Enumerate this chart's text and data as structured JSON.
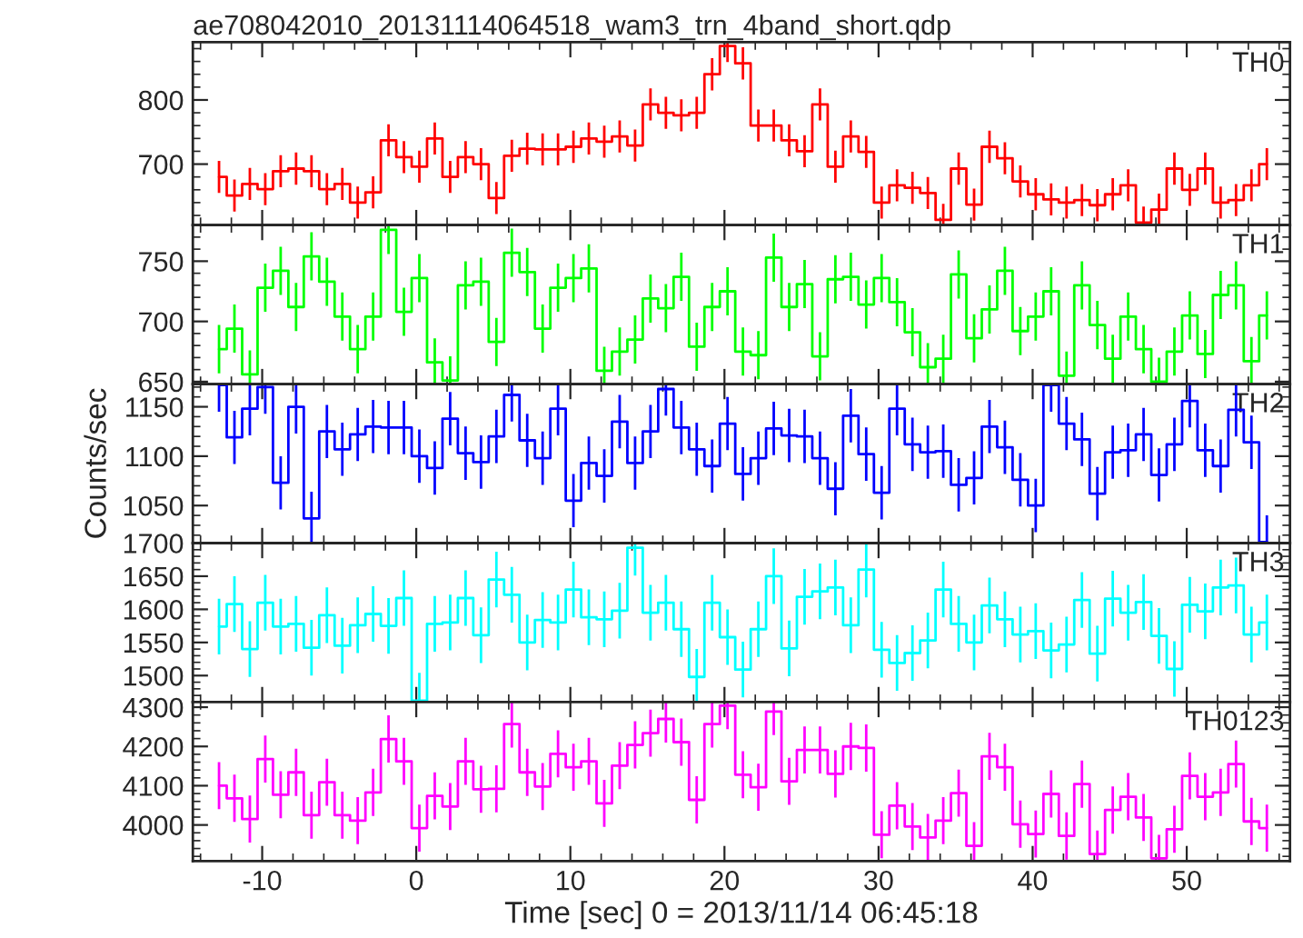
{
  "chart_data": [
    {
      "type": "step",
      "title": "ae708042010_20131114064518_wam3_trn_4band_short.qdp",
      "annotations": [
        "TH0"
      ],
      "color": "#ff0000",
      "tick_labels": "y",
      "x": [
        -12.8,
        -11.8,
        -10.8,
        -9.8,
        -8.8,
        -7.8,
        -6.8,
        -5.8,
        -4.8,
        -3.8,
        -2.8,
        -1.8,
        -0.8,
        0.2,
        1.2,
        2.2,
        3.2,
        4.2,
        5.2,
        6.2,
        7.2,
        8.2,
        9.2,
        10.2,
        11.2,
        12.2,
        13.2,
        14.2,
        15.2,
        16.2,
        17.2,
        18.2,
        19.2,
        20.2,
        21.2,
        22.2,
        23.2,
        24.2,
        25.2,
        26.2,
        27.2,
        28.2,
        29.2,
        30.2,
        31.2,
        32.2,
        33.2,
        34.2,
        35.2,
        36.2,
        37.2,
        38.2,
        39.2,
        40.2,
        41.2,
        42.2,
        43.2,
        44.2,
        45.2,
        46.2,
        47.2,
        48.2,
        49.2,
        50.2,
        51.2,
        52.2,
        53.2,
        54.2,
        55.2
      ],
      "values": [
        680,
        651,
        669,
        661,
        689,
        693,
        689,
        661,
        669,
        640,
        656,
        737,
        711,
        696,
        740,
        680,
        711,
        700,
        647,
        713,
        724,
        723,
        723,
        727,
        740,
        735,
        743,
        729,
        793,
        780,
        776,
        780,
        840,
        884,
        857,
        760,
        760,
        737,
        720,
        793,
        696,
        743,
        719,
        640,
        667,
        663,
        655,
        613,
        693,
        637,
        727,
        709,
        673,
        653,
        645,
        640,
        644,
        636,
        653,
        667,
        609,
        629,
        693,
        660,
        693,
        640,
        644,
        667,
        700
      ],
      "errors": [
        25,
        25,
        25,
        25,
        25,
        25,
        25,
        25,
        25,
        25,
        25,
        25,
        25,
        25,
        25,
        25,
        25,
        25,
        25,
        25,
        25,
        25,
        25,
        25,
        25,
        25,
        25,
        25,
        25,
        25,
        25,
        25,
        25,
        25,
        25,
        25,
        25,
        25,
        25,
        25,
        25,
        25,
        25,
        25,
        25,
        25,
        25,
        25,
        25,
        25,
        25,
        25,
        25,
        25,
        25,
        25,
        25,
        25,
        25,
        25,
        25,
        25,
        25,
        25,
        25,
        25,
        25,
        25,
        25
      ],
      "xlim": [
        -14.5,
        56.7
      ],
      "xticks": [
        -10,
        0,
        10,
        20,
        30,
        40,
        50
      ],
      "ylim": [
        605,
        890
      ],
      "yticks": [
        700,
        800
      ]
    },
    {
      "type": "step",
      "annotations": [
        "TH1"
      ],
      "color": "#00ff00",
      "tick_labels": "y",
      "x": [
        -12.8,
        -11.8,
        -10.8,
        -9.8,
        -8.8,
        -7.8,
        -6.8,
        -5.8,
        -4.8,
        -3.8,
        -2.8,
        -1.8,
        -0.8,
        0.2,
        1.2,
        2.2,
        3.2,
        4.2,
        5.2,
        6.2,
        7.2,
        8.2,
        9.2,
        10.2,
        11.2,
        12.2,
        13.2,
        14.2,
        15.2,
        16.2,
        17.2,
        18.2,
        19.2,
        20.2,
        21.2,
        22.2,
        23.2,
        24.2,
        25.2,
        26.2,
        27.2,
        28.2,
        29.2,
        30.2,
        31.2,
        32.2,
        33.2,
        34.2,
        35.2,
        36.2,
        37.2,
        38.2,
        39.2,
        40.2,
        41.2,
        42.2,
        43.2,
        44.2,
        45.2,
        46.2,
        47.2,
        48.2,
        49.2,
        50.2,
        51.2,
        52.2,
        53.2,
        54.2,
        55.2
      ],
      "values": [
        677,
        694,
        656,
        728,
        742,
        712,
        754,
        733,
        704,
        677,
        704,
        776,
        708,
        736,
        666,
        651,
        730,
        733,
        683,
        757,
        741,
        694,
        728,
        736,
        744,
        659,
        675,
        685,
        719,
        711,
        737,
        679,
        712,
        725,
        675,
        672,
        753,
        712,
        731,
        671,
        735,
        737,
        714,
        736,
        716,
        691,
        662,
        669,
        739,
        686,
        710,
        742,
        692,
        704,
        725,
        655,
        730,
        697,
        669,
        704,
        677,
        650,
        675,
        705,
        673,
        722,
        730,
        667,
        705
      ],
      "errors": [
        20,
        20,
        20,
        20,
        20,
        20,
        20,
        20,
        20,
        20,
        20,
        20,
        20,
        20,
        20,
        20,
        20,
        20,
        20,
        20,
        20,
        20,
        20,
        20,
        20,
        20,
        20,
        20,
        20,
        20,
        20,
        20,
        20,
        20,
        20,
        20,
        20,
        20,
        20,
        20,
        20,
        20,
        20,
        20,
        20,
        20,
        20,
        20,
        20,
        20,
        20,
        20,
        20,
        20,
        20,
        20,
        20,
        20,
        20,
        20,
        20,
        20,
        20,
        20,
        20,
        20,
        20,
        20,
        20
      ],
      "xlim": [
        -14.5,
        56.7
      ],
      "xticks": [
        -10,
        0,
        10,
        20,
        30,
        40,
        50
      ],
      "ylim": [
        648,
        780
      ],
      "yticks": [
        650,
        700,
        750
      ]
    },
    {
      "type": "step",
      "annotations": [
        "TH2"
      ],
      "ylabel": "Counts/sec",
      "color": "#0000ff",
      "tick_labels": "y",
      "x": [
        -12.8,
        -11.8,
        -10.8,
        -9.8,
        -8.8,
        -7.8,
        -6.8,
        -5.8,
        -4.8,
        -3.8,
        -2.8,
        -1.8,
        -0.8,
        0.2,
        1.2,
        2.2,
        3.2,
        4.2,
        5.2,
        6.2,
        7.2,
        8.2,
        9.2,
        10.2,
        11.2,
        12.2,
        13.2,
        14.2,
        15.2,
        16.2,
        17.2,
        18.2,
        19.2,
        20.2,
        21.2,
        22.2,
        23.2,
        24.2,
        25.2,
        26.2,
        27.2,
        28.2,
        29.2,
        30.2,
        31.2,
        32.2,
        33.2,
        34.2,
        35.2,
        36.2,
        37.2,
        38.2,
        39.2,
        40.2,
        41.2,
        42.2,
        43.2,
        44.2,
        45.2,
        46.2,
        47.2,
        48.2,
        49.2,
        50.2,
        51.2,
        52.2,
        53.2,
        54.2,
        55.2
      ],
      "values": [
        1172,
        1119,
        1148,
        1170,
        1073,
        1150,
        1037,
        1125,
        1107,
        1122,
        1130,
        1129,
        1129,
        1100,
        1088,
        1138,
        1103,
        1094,
        1120,
        1162,
        1116,
        1098,
        1148,
        1055,
        1093,
        1080,
        1135,
        1093,
        1125,
        1168,
        1129,
        1107,
        1090,
        1133,
        1082,
        1098,
        1128,
        1121,
        1120,
        1098,
        1067,
        1141,
        1102,
        1063,
        1148,
        1112,
        1104,
        1105,
        1071,
        1078,
        1130,
        1109,
        1076,
        1050,
        1172,
        1133,
        1117,
        1062,
        1104,
        1106,
        1122,
        1081,
        1112,
        1156,
        1106,
        1090,
        1147,
        1114,
        1013
      ],
      "errors": [
        27,
        27,
        27,
        27,
        27,
        27,
        27,
        27,
        27,
        27,
        27,
        27,
        27,
        27,
        27,
        27,
        27,
        27,
        27,
        27,
        27,
        27,
        27,
        27,
        27,
        27,
        27,
        27,
        27,
        27,
        27,
        27,
        27,
        27,
        27,
        27,
        27,
        27,
        27,
        27,
        27,
        27,
        27,
        27,
        27,
        27,
        27,
        27,
        27,
        27,
        27,
        27,
        27,
        27,
        27,
        27,
        27,
        27,
        27,
        27,
        27,
        27,
        27,
        27,
        27,
        27,
        27,
        27,
        27
      ],
      "xlim": [
        -14.5,
        56.7
      ],
      "xticks": [
        -10,
        0,
        10,
        20,
        30,
        40,
        50
      ],
      "ylim": [
        1012,
        1173
      ],
      "yticks": [
        1050,
        1100,
        1150
      ]
    },
    {
      "type": "step",
      "annotations": [
        "TH3"
      ],
      "color": "#00ffff",
      "tick_labels": "y",
      "x": [
        -12.8,
        -11.8,
        -10.8,
        -9.8,
        -8.8,
        -7.8,
        -6.8,
        -5.8,
        -4.8,
        -3.8,
        -2.8,
        -1.8,
        -0.8,
        0.2,
        1.2,
        2.2,
        3.2,
        4.2,
        5.2,
        6.2,
        7.2,
        8.2,
        9.2,
        10.2,
        11.2,
        12.2,
        13.2,
        14.2,
        15.2,
        16.2,
        17.2,
        18.2,
        19.2,
        20.2,
        21.2,
        22.2,
        23.2,
        24.2,
        25.2,
        26.2,
        27.2,
        28.2,
        29.2,
        30.2,
        31.2,
        32.2,
        33.2,
        34.2,
        35.2,
        36.2,
        37.2,
        38.2,
        39.2,
        40.2,
        41.2,
        42.2,
        43.2,
        44.2,
        45.2,
        46.2,
        47.2,
        48.2,
        49.2,
        50.2,
        51.2,
        52.2,
        53.2,
        54.2,
        55.2
      ],
      "values": [
        1574,
        1608,
        1540,
        1610,
        1574,
        1578,
        1542,
        1591,
        1545,
        1576,
        1593,
        1575,
        1617,
        1462,
        1578,
        1580,
        1617,
        1561,
        1645,
        1622,
        1550,
        1584,
        1580,
        1630,
        1588,
        1585,
        1598,
        1693,
        1595,
        1610,
        1570,
        1498,
        1610,
        1558,
        1509,
        1570,
        1650,
        1541,
        1619,
        1627,
        1633,
        1576,
        1660,
        1539,
        1519,
        1534,
        1553,
        1630,
        1578,
        1550,
        1606,
        1585,
        1562,
        1567,
        1538,
        1547,
        1614,
        1533,
        1616,
        1595,
        1611,
        1560,
        1510,
        1607,
        1597,
        1633,
        1636,
        1562,
        1580
      ],
      "errors": [
        42,
        42,
        42,
        42,
        42,
        42,
        42,
        42,
        42,
        42,
        42,
        42,
        42,
        42,
        42,
        42,
        42,
        42,
        42,
        42,
        42,
        42,
        42,
        42,
        42,
        42,
        42,
        42,
        42,
        42,
        42,
        42,
        42,
        42,
        42,
        42,
        42,
        42,
        42,
        42,
        42,
        42,
        42,
        42,
        42,
        42,
        42,
        42,
        42,
        42,
        42,
        42,
        42,
        42,
        42,
        42,
        42,
        42,
        42,
        42,
        42,
        42,
        42,
        42,
        42,
        42,
        42,
        42,
        42
      ],
      "xlim": [
        -14.5,
        56.7
      ],
      "xticks": [
        -10,
        0,
        10,
        20,
        30,
        40,
        50
      ],
      "ylim": [
        1460,
        1700
      ],
      "yticks": [
        1500,
        1550,
        1600,
        1650,
        1700
      ]
    },
    {
      "type": "step",
      "annotations": [
        "TH0123"
      ],
      "xlabel": "Time [sec] 0 = 2013/11/14 06:45:18",
      "color": "#ff00ff",
      "x": [
        -12.8,
        -11.8,
        -10.8,
        -9.8,
        -8.8,
        -7.8,
        -6.8,
        -5.8,
        -4.8,
        -3.8,
        -2.8,
        -1.8,
        -0.8,
        0.2,
        1.2,
        2.2,
        3.2,
        4.2,
        5.2,
        6.2,
        7.2,
        8.2,
        9.2,
        10.2,
        11.2,
        12.2,
        13.2,
        14.2,
        15.2,
        16.2,
        17.2,
        18.2,
        19.2,
        20.2,
        21.2,
        22.2,
        23.2,
        24.2,
        25.2,
        26.2,
        27.2,
        28.2,
        29.2,
        30.2,
        31.2,
        32.2,
        33.2,
        34.2,
        35.2,
        36.2,
        37.2,
        38.2,
        39.2,
        40.2,
        41.2,
        42.2,
        43.2,
        44.2,
        45.2,
        46.2,
        47.2,
        48.2,
        49.2,
        50.2,
        51.2,
        52.2,
        53.2,
        54.2,
        55.2
      ],
      "values": [
        4100,
        4068,
        4015,
        4168,
        4077,
        4134,
        4025,
        4109,
        4025,
        4011,
        4083,
        4219,
        4162,
        3992,
        4074,
        4047,
        4162,
        4091,
        4092,
        4257,
        4134,
        4098,
        4181,
        4147,
        4162,
        4055,
        4151,
        4204,
        4234,
        4270,
        4211,
        4064,
        4257,
        4304,
        4128,
        4096,
        4289,
        4111,
        4191,
        4191,
        4130,
        4200,
        4196,
        3975,
        4049,
        3996,
        3968,
        4011,
        4081,
        3947,
        4175,
        4147,
        4002,
        3977,
        4079,
        3972,
        4104,
        3926,
        4038,
        4072,
        4019,
        3915,
        3989,
        4125,
        4072,
        4083,
        4155,
        4009,
        3992
      ],
      "errors": [
        60,
        60,
        60,
        60,
        60,
        60,
        60,
        60,
        60,
        60,
        60,
        60,
        60,
        60,
        60,
        60,
        60,
        60,
        60,
        60,
        60,
        60,
        60,
        60,
        60,
        60,
        60,
        60,
        60,
        60,
        60,
        60,
        60,
        60,
        60,
        60,
        60,
        60,
        60,
        60,
        60,
        60,
        60,
        60,
        60,
        60,
        60,
        60,
        60,
        60,
        60,
        60,
        60,
        60,
        60,
        60,
        60,
        60,
        60,
        60,
        60,
        60,
        60,
        60,
        60,
        60,
        60,
        60,
        60
      ],
      "xlim": [
        -14.5,
        56.7
      ],
      "xticks": [
        -10,
        0,
        10,
        20,
        30,
        40,
        50
      ],
      "ylim": [
        3908,
        4313
      ],
      "yticks": [
        4000,
        4100,
        4200,
        4300
      ]
    }
  ]
}
